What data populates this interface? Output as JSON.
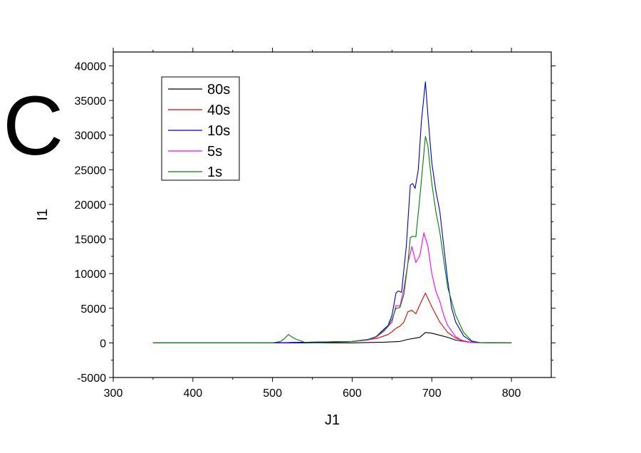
{
  "panel_label": "C",
  "chart_data": {
    "type": "line",
    "title": "",
    "xlabel": "J1",
    "ylabel": "I1",
    "xlim": [
      300,
      850
    ],
    "ylim": [
      -5000,
      42000
    ],
    "x_ticks": [
      300,
      400,
      500,
      600,
      700,
      800
    ],
    "y_ticks": [
      -5000,
      0,
      5000,
      10000,
      15000,
      20000,
      25000,
      30000,
      35000,
      40000
    ],
    "legend_position": "top-left",
    "grid": false,
    "series": [
      {
        "name": "80s",
        "color": "#000000",
        "x": [
          350,
          400,
          500,
          600,
          640,
          660,
          670,
          680,
          685,
          692,
          700,
          710,
          720,
          730,
          750,
          800
        ],
        "y": [
          0,
          0,
          0,
          0,
          100,
          200,
          500,
          700,
          800,
          1500,
          1400,
          1100,
          800,
          400,
          50,
          0
        ]
      },
      {
        "name": "40s",
        "color": "#e00000",
        "x": [
          350,
          400,
          500,
          600,
          630,
          645,
          650,
          655,
          660,
          665,
          670,
          675,
          680,
          685,
          692,
          700,
          710,
          720,
          730,
          740,
          750,
          800
        ],
        "y": [
          0,
          0,
          0,
          200,
          600,
          1200,
          1600,
          2100,
          2400,
          3000,
          4500,
          4700,
          4200,
          5500,
          7200,
          5200,
          3000,
          1500,
          700,
          300,
          50,
          0
        ]
      },
      {
        "name": "10s",
        "color": "#0000c0",
        "x": [
          350,
          400,
          500,
          600,
          620,
          630,
          640,
          645,
          650,
          655,
          658,
          662,
          668,
          673,
          676,
          679,
          683,
          687,
          692,
          695,
          700,
          705,
          710,
          715,
          720,
          725,
          730,
          740,
          750,
          760,
          780,
          800
        ],
        "y": [
          0,
          0,
          0,
          200,
          500,
          900,
          2000,
          2500,
          4000,
          7200,
          7500,
          7300,
          14000,
          22800,
          23000,
          22300,
          25000,
          32000,
          37700,
          33000,
          26000,
          22000,
          19000,
          14000,
          9000,
          5000,
          3000,
          1000,
          200,
          50,
          0,
          0
        ]
      },
      {
        "name": "5s",
        "color": "#ff00ff",
        "x": [
          350,
          400,
          500,
          600,
          620,
          630,
          640,
          650,
          655,
          660,
          665,
          670,
          675,
          680,
          685,
          690,
          695,
          700,
          705,
          710,
          715,
          720,
          730,
          740,
          750,
          800
        ],
        "y": [
          0,
          0,
          0,
          200,
          400,
          800,
          1700,
          3000,
          5400,
          5300,
          7800,
          11500,
          13900,
          11600,
          12600,
          15900,
          14000,
          10000,
          7500,
          6000,
          4000,
          2500,
          900,
          200,
          50,
          0
        ]
      },
      {
        "name": "1s",
        "color": "#008000",
        "x": [
          350,
          400,
          500,
          510,
          515,
          520,
          525,
          530,
          540,
          550,
          560,
          600,
          620,
          630,
          640,
          645,
          650,
          655,
          660,
          665,
          670,
          673,
          676,
          680,
          685,
          692,
          695,
          700,
          705,
          710,
          715,
          720,
          730,
          740,
          750,
          760,
          780,
          800
        ],
        "y": [
          0,
          0,
          0,
          200,
          600,
          1200,
          800,
          500,
          100,
          0,
          0,
          200,
          500,
          900,
          1800,
          2400,
          3400,
          5000,
          5100,
          7000,
          11500,
          15200,
          15400,
          15300,
          21000,
          29800,
          28500,
          23000,
          19000,
          16000,
          12000,
          8000,
          4000,
          1500,
          300,
          50,
          0,
          0
        ]
      }
    ]
  }
}
